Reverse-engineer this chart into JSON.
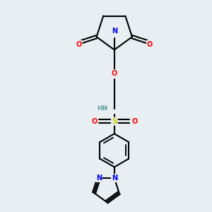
{
  "bg_color": "#e8eef2",
  "atom_colors": {
    "N": "#0000ff",
    "O": "#ff0000",
    "S": "#cccc00",
    "C": "#000000",
    "H": "#5f9ea0"
  },
  "bond_color": "#000000",
  "bond_width": 1.5
}
